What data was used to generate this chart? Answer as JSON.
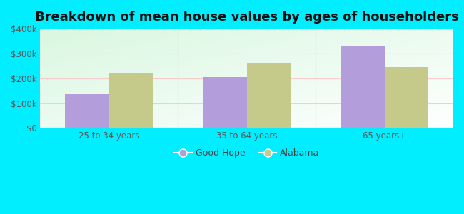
{
  "title": "Breakdown of mean house values by ages of householders",
  "categories": [
    "25 to 34 years",
    "35 to 64 years",
    "65 years+"
  ],
  "series": {
    "Good Hope": [
      135000,
      205000,
      330000
    ],
    "Alabama": [
      220000,
      260000,
      245000
    ]
  },
  "bar_colors": {
    "Good Hope": "#b39ddb",
    "Alabama": "#c5c98a"
  },
  "ylim": [
    0,
    400000
  ],
  "yticks": [
    0,
    100000,
    200000,
    300000,
    400000
  ],
  "ytick_labels": [
    "$0",
    "$100k",
    "$200k",
    "$300k",
    "$400k"
  ],
  "outer_bg": "#00eeff",
  "title_fontsize": 13,
  "tick_fontsize": 8.5,
  "legend_fontsize": 9,
  "bar_width": 0.32
}
